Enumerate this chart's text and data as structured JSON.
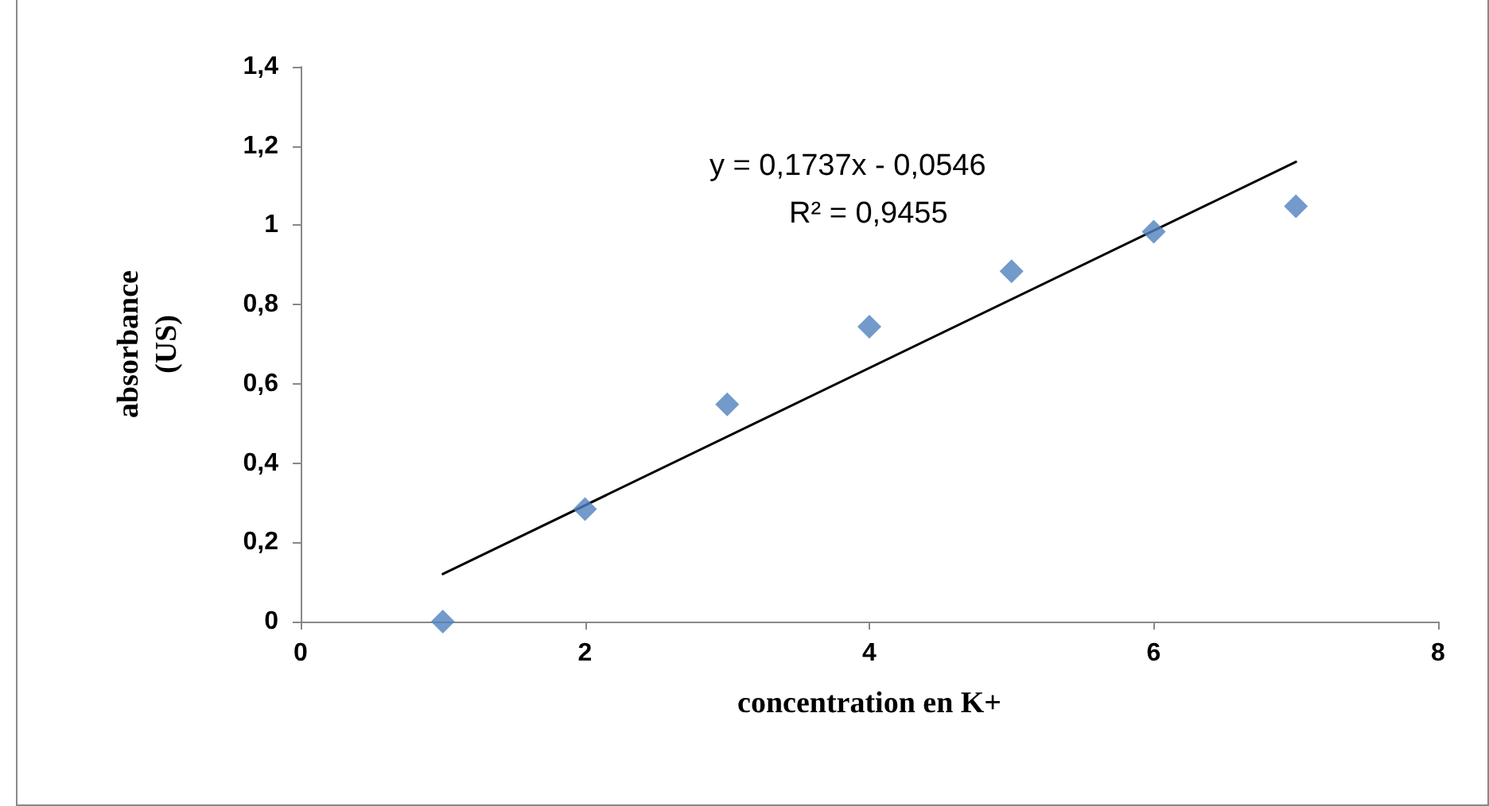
{
  "chart_data": {
    "type": "scatter",
    "xlabel": "concentration en K+",
    "ylabel": "absorbance (US)",
    "annotations": [
      "y = 0,1737x - 0,0546",
      "R² = 0,9455"
    ],
    "x": [
      1,
      2,
      3,
      4,
      5,
      6,
      7
    ],
    "series": [
      {
        "color": "#4f81bd",
        "values": [
          0,
          0.284,
          0.548,
          0.744,
          0.884,
          0.984,
          1.048
        ],
        "marker": "diamond"
      },
      {
        "type": "line",
        "color": "#000000",
        "x": [
          1,
          7
        ],
        "values": [
          0.12,
          1.16
        ],
        "marker": "none"
      }
    ],
    "xlim": [
      0,
      8
    ],
    "xticks": [
      0,
      2,
      4,
      6,
      8
    ],
    "ylim": [
      0,
      1.4
    ],
    "yticks": [
      0,
      {
        "value": 0.2,
        "label": "0,2"
      },
      {
        "value": 0.4,
        "label": "0,4"
      },
      {
        "value": 0.6,
        "label": "0,6"
      },
      {
        "value": 0.8,
        "label": "0,8"
      },
      1,
      {
        "value": 1.2,
        "label": "1,2"
      },
      {
        "value": 1.4,
        "label": "1,4"
      }
    ],
    "grid": false
  }
}
